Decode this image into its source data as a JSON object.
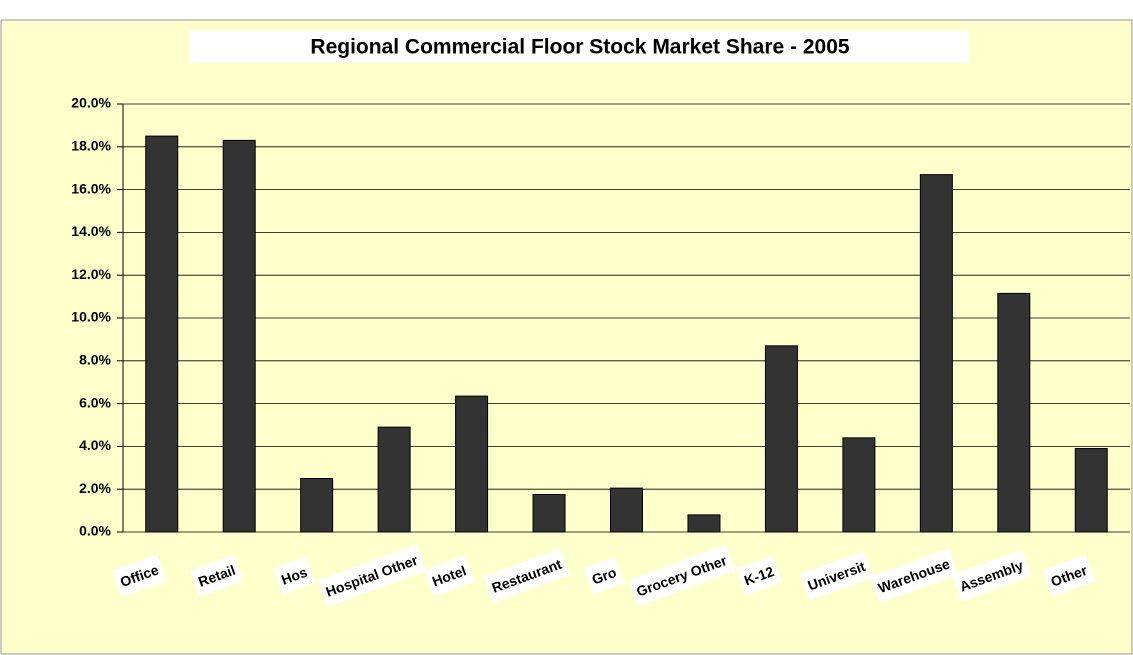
{
  "chart_data": {
    "type": "bar",
    "title": "Regional Commercial Floor Stock Market Share - 2005",
    "categories": [
      "Office",
      "Retail",
      "Hos",
      "Hospital Other",
      "Hotel",
      "Restaurant",
      "Gro",
      "Grocery Other",
      "K-12",
      "Universit",
      "Warehouse",
      "Assembly",
      "Other"
    ],
    "values": [
      18.5,
      18.3,
      2.5,
      4.9,
      6.35,
      1.75,
      2.05,
      0.8,
      8.7,
      4.4,
      16.7,
      11.15,
      3.9
    ],
    "color": "#333333",
    "ylim": [
      0,
      20
    ],
    "yticks": [
      {
        "value": 0,
        "label": "0.0%"
      },
      {
        "value": 2,
        "label": "2.0%"
      },
      {
        "value": 4,
        "label": "4.0%"
      },
      {
        "value": 6,
        "label": "6.0%"
      },
      {
        "value": 8,
        "label": "8.0%"
      },
      {
        "value": 10,
        "label": "10.0%"
      },
      {
        "value": 12,
        "label": "12.0%"
      },
      {
        "value": 14,
        "label": "14.0%"
      },
      {
        "value": 16,
        "label": "16.0%"
      },
      {
        "value": 18,
        "label": "18.0%"
      },
      {
        "value": 20,
        "label": "20.0%"
      }
    ],
    "grid": true
  }
}
